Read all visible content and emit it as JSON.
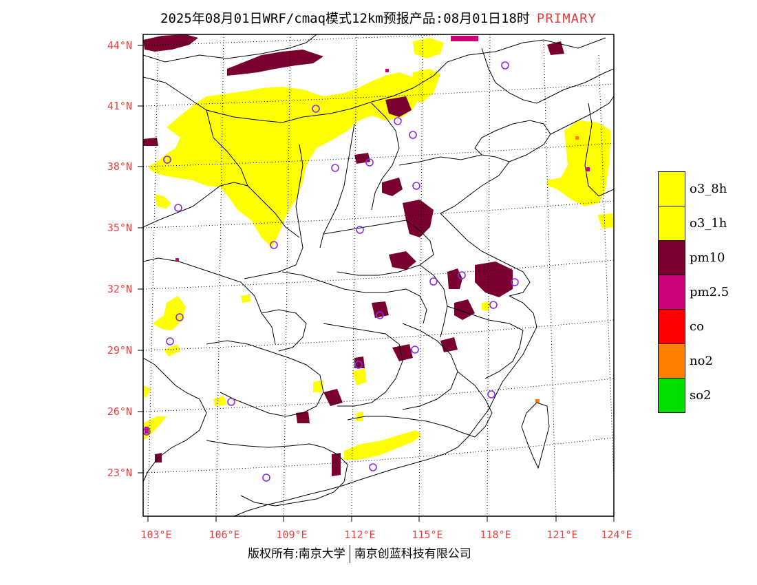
{
  "title": {
    "main": "2025年08月01日WRF/cmaq模式12km预报产品:08月01日18时",
    "tag": "PRIMARY"
  },
  "map": {
    "lat_labels": [
      "44°N",
      "41°N",
      "38°N",
      "35°N",
      "32°N",
      "29°N",
      "26°N",
      "23°N"
    ],
    "lon_labels": [
      "103°E",
      "106°E",
      "109°E",
      "112°E",
      "115°E",
      "118°E",
      "121°E",
      "124°E"
    ],
    "colors": {
      "o3": "#ffff00",
      "pm10": "#7a0030",
      "pm25": "#cc0077",
      "co": "#ff0000",
      "no2": "#ff8000",
      "so2": "#00dd00",
      "station": "#8a2be2",
      "grid_label": "#e84040"
    }
  },
  "legend": [
    {
      "label": "o3_8h",
      "color": "#ffff00"
    },
    {
      "label": "o3_1h",
      "color": "#ffff00"
    },
    {
      "label": "pm10",
      "color": "#7a0030"
    },
    {
      "label": "pm2.5",
      "color": "#cc0077"
    },
    {
      "label": "co",
      "color": "#ff0000"
    },
    {
      "label": "no2",
      "color": "#ff8000"
    },
    {
      "label": "so2",
      "color": "#00dd00"
    }
  ],
  "footer": {
    "left": "版权所有:南京大学",
    "right": "南京创蓝科技有限公司"
  }
}
